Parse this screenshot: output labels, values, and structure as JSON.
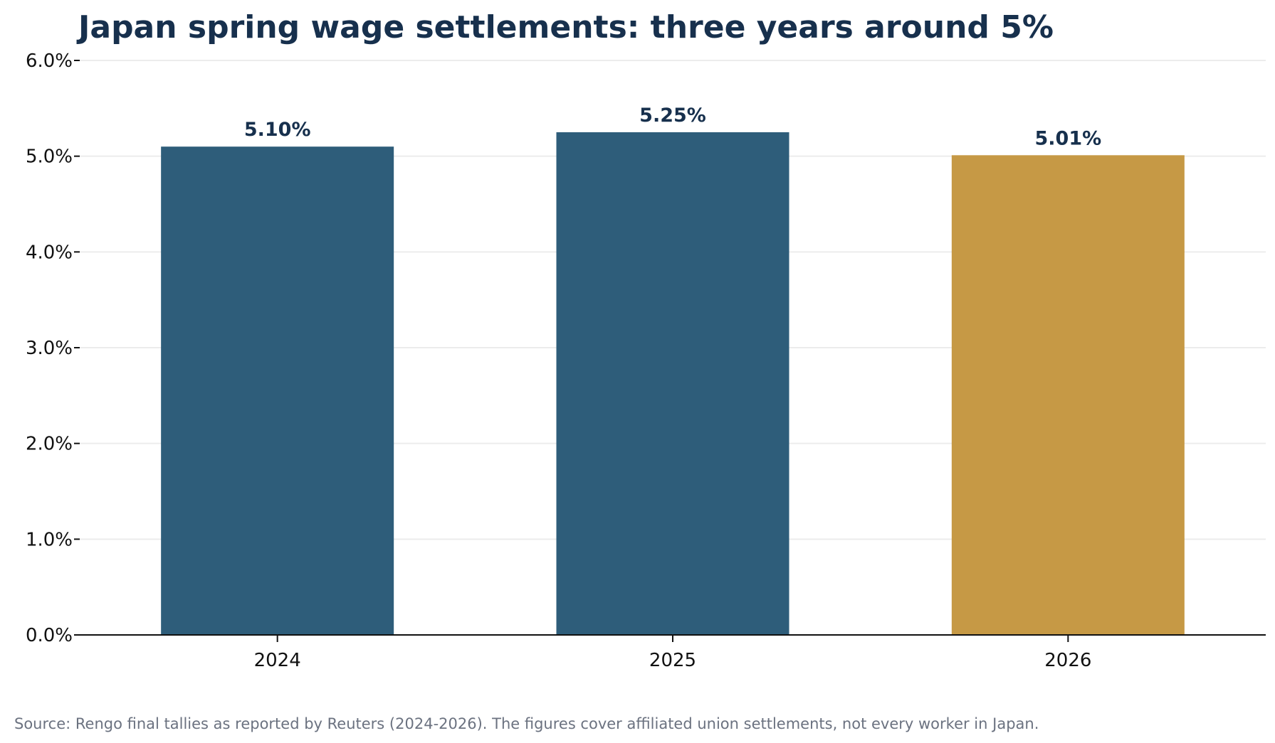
{
  "chart_data": {
    "type": "bar",
    "title": "Japan spring wage settlements: three years around 5%",
    "categories": [
      "2024",
      "2025",
      "2026"
    ],
    "values": [
      5.1,
      5.25,
      5.01
    ],
    "value_labels": [
      "5.10%",
      "5.25%",
      "5.01%"
    ],
    "bar_colors": [
      "#2e5d7a",
      "#2e5d7a",
      "#c69945"
    ],
    "xlabel": "",
    "ylabel": "",
    "ylim": [
      0,
      6
    ],
    "yticks": [
      0,
      1,
      2,
      3,
      4,
      5,
      6
    ],
    "ytick_labels": [
      "0.0%",
      "1.0%",
      "2.0%",
      "3.0%",
      "4.0%",
      "5.0%",
      "6.0%"
    ],
    "grid": "horizontal",
    "legend": "none"
  },
  "source_note": "Source: Rengo final tallies as reported by Reuters (2024-2026). The figures cover affiliated union settlements, not every worker in Japan.",
  "colors": {
    "title": "#17304d",
    "data_label": "#17304d",
    "gridline": "#ececec",
    "axis": "#111111",
    "source": "#6b7280"
  }
}
